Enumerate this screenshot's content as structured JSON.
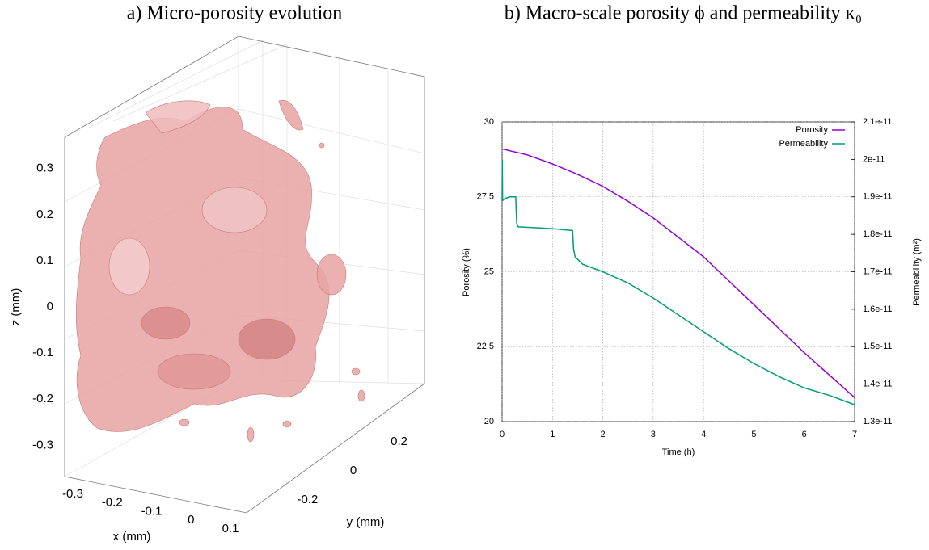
{
  "chart_data": [
    {
      "type": "isosurface",
      "title": "a) Micro-porosity evolution",
      "xlabel": "x (mm)",
      "ylabel": "y (mm)",
      "zlabel": "z (mm)",
      "xticks": [
        -0.3,
        -0.2,
        -0.1,
        0,
        0.1
      ],
      "yticks": [
        -0.2,
        0,
        0.2
      ],
      "zticks": [
        -0.3,
        -0.2,
        -0.1,
        0,
        0.1,
        0.2,
        0.3
      ],
      "color": "#e8a3a3"
    },
    {
      "type": "line",
      "title": "b) Macro-scale porosity ϕ and permeability κ₀",
      "xlabel": "Time (h)",
      "ylabel": "Porosity (%)",
      "y2label": "Permeability (m²)",
      "xlim": [
        0,
        7
      ],
      "xticks": [
        0,
        1,
        2,
        3,
        4,
        5,
        6,
        7
      ],
      "ylim": [
        20,
        30
      ],
      "yticks": [
        20,
        22.5,
        25,
        27.5,
        30
      ],
      "y2lim": [
        1.3e-11,
        2.1e-11
      ],
      "y2ticks": [
        1.3e-11,
        1.4e-11,
        1.5e-11,
        1.6e-11,
        1.7e-11,
        1.8e-11,
        1.9e-11,
        2e-11,
        2.1e-11
      ],
      "grid": true,
      "legend": "upper right",
      "series": [
        {
          "name": "Porosity",
          "color": "#9400d3",
          "x": [
            0,
            0.5,
            1,
            1.5,
            2,
            2.5,
            3,
            3.5,
            4,
            4.5,
            5,
            5.5,
            6,
            6.5,
            7
          ],
          "values": [
            29.1,
            28.9,
            28.6,
            28.25,
            27.85,
            27.35,
            26.8,
            26.15,
            25.5,
            24.7,
            23.9,
            23.1,
            22.3,
            21.55,
            20.8
          ]
        },
        {
          "name": "Permeability",
          "color": "#009e73",
          "axis": "y2",
          "x": [
            0,
            0.005,
            0.01,
            0.05,
            0.15,
            0.27,
            0.29,
            0.32,
            0.6,
            1.0,
            1.4,
            1.42,
            1.45,
            1.6,
            2,
            2.5,
            3,
            3.5,
            4,
            4.5,
            5,
            5.5,
            6,
            6.5,
            7
          ],
          "values": [
            1.89e-11,
            2e-11,
            1.89e-11,
            1.895e-11,
            1.9e-11,
            1.9e-11,
            1.83e-11,
            1.82e-11,
            1.818e-11,
            1.815e-11,
            1.81e-11,
            1.76e-11,
            1.74e-11,
            1.72e-11,
            1.7e-11,
            1.67e-11,
            1.63e-11,
            1.585e-11,
            1.54e-11,
            1.495e-11,
            1.455e-11,
            1.42e-11,
            1.39e-11,
            1.37e-11,
            1.345e-11
          ]
        }
      ]
    }
  ]
}
